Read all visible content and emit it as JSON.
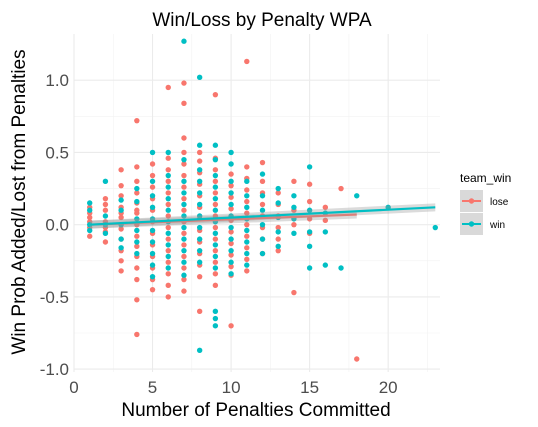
{
  "chart_data": {
    "type": "scatter",
    "title": "Win/Loss by Penalty WPA",
    "xlabel": "Number of Penalties Committed",
    "ylabel": "Win Prob Added/Lost from Penalties",
    "xlim": [
      0,
      23.3
    ],
    "ylim": [
      -1.02,
      1.32
    ],
    "x_ticks": [
      0,
      5,
      10,
      15,
      20
    ],
    "y_ticks": [
      -1.0,
      -0.5,
      0.0,
      0.5,
      1.0
    ],
    "x_tick_labels": [
      "0",
      "5",
      "10",
      "15",
      "20"
    ],
    "y_tick_labels": [
      "-1.0",
      "-0.5",
      "0.0",
      "0.5",
      "1.0"
    ],
    "grid": true,
    "legend": {
      "title": "team_win",
      "placement": "right",
      "entries": [
        "lose",
        "win"
      ]
    },
    "series": [
      {
        "name": "lose",
        "color": "#F8766D",
        "trend": {
          "x": [
            1,
            18
          ],
          "y": [
            0.0,
            0.07
          ]
        },
        "points": [
          [
            1,
            0.12
          ],
          [
            1,
            0.05
          ],
          [
            1,
            -0.02
          ],
          [
            1,
            -0.08
          ],
          [
            1,
            0.08
          ],
          [
            1,
            0.02
          ],
          [
            2,
            0.18
          ],
          [
            2,
            0.1
          ],
          [
            2,
            0.02
          ],
          [
            2,
            -0.05
          ],
          [
            2,
            -0.12
          ],
          [
            2,
            0.14
          ],
          [
            2,
            -0.02
          ],
          [
            3,
            0.38
          ],
          [
            3,
            0.27
          ],
          [
            3,
            0.2
          ],
          [
            3,
            0.12
          ],
          [
            3,
            0.05
          ],
          [
            3,
            -0.03
          ],
          [
            3,
            -0.1
          ],
          [
            3,
            -0.18
          ],
          [
            3,
            -0.25
          ],
          [
            3,
            -0.32
          ],
          [
            3,
            0.08
          ],
          [
            4,
            0.72
          ],
          [
            4,
            0.4
          ],
          [
            4,
            0.3
          ],
          [
            4,
            0.22
          ],
          [
            4,
            0.15
          ],
          [
            4,
            0.08
          ],
          [
            4,
            0.0
          ],
          [
            4,
            -0.08
          ],
          [
            4,
            -0.15
          ],
          [
            4,
            -0.22
          ],
          [
            4,
            -0.3
          ],
          [
            4,
            -0.38
          ],
          [
            4,
            -0.52
          ],
          [
            4,
            -0.76
          ],
          [
            4,
            0.1
          ],
          [
            5,
            0.42
          ],
          [
            5,
            0.34
          ],
          [
            5,
            0.26
          ],
          [
            5,
            0.18
          ],
          [
            5,
            0.1
          ],
          [
            5,
            0.02
          ],
          [
            5,
            -0.06
          ],
          [
            5,
            -0.14
          ],
          [
            5,
            -0.22
          ],
          [
            5,
            -0.3
          ],
          [
            5,
            -0.38
          ],
          [
            5,
            -0.45
          ],
          [
            6,
            0.95
          ],
          [
            6,
            0.46
          ],
          [
            6,
            0.38
          ],
          [
            6,
            0.3
          ],
          [
            6,
            0.22
          ],
          [
            6,
            0.14
          ],
          [
            6,
            0.06
          ],
          [
            6,
            -0.02
          ],
          [
            6,
            -0.1
          ],
          [
            6,
            -0.18
          ],
          [
            6,
            -0.26
          ],
          [
            6,
            -0.34
          ],
          [
            6,
            -0.42
          ],
          [
            6,
            -0.5
          ],
          [
            7,
            0.98
          ],
          [
            7,
            0.84
          ],
          [
            7,
            0.6
          ],
          [
            7,
            0.5
          ],
          [
            7,
            0.42
          ],
          [
            7,
            0.34
          ],
          [
            7,
            0.26
          ],
          [
            7,
            0.18
          ],
          [
            7,
            0.1
          ],
          [
            7,
            0.02
          ],
          [
            7,
            -0.06
          ],
          [
            7,
            -0.14
          ],
          [
            7,
            -0.22
          ],
          [
            7,
            -0.3
          ],
          [
            7,
            -0.38
          ],
          [
            7,
            -0.46
          ],
          [
            8,
            0.5
          ],
          [
            8,
            0.44
          ],
          [
            8,
            0.36
          ],
          [
            8,
            0.28
          ],
          [
            8,
            0.2
          ],
          [
            8,
            0.12
          ],
          [
            8,
            0.04
          ],
          [
            8,
            -0.04
          ],
          [
            8,
            -0.12
          ],
          [
            8,
            -0.2
          ],
          [
            8,
            -0.28
          ],
          [
            8,
            -0.36
          ],
          [
            8,
            -0.6
          ],
          [
            9,
            0.9
          ],
          [
            9,
            0.46
          ],
          [
            9,
            0.38
          ],
          [
            9,
            0.3
          ],
          [
            9,
            0.22
          ],
          [
            9,
            0.14
          ],
          [
            9,
            0.06
          ],
          [
            9,
            -0.02
          ],
          [
            9,
            -0.1
          ],
          [
            9,
            -0.18
          ],
          [
            9,
            -0.26
          ],
          [
            9,
            -0.34
          ],
          [
            9,
            -0.42
          ],
          [
            10,
            0.35
          ],
          [
            10,
            0.27
          ],
          [
            10,
            0.19
          ],
          [
            10,
            0.11
          ],
          [
            10,
            0.03
          ],
          [
            10,
            -0.05
          ],
          [
            10,
            -0.13
          ],
          [
            10,
            -0.21
          ],
          [
            10,
            -0.29
          ],
          [
            10,
            -0.35
          ],
          [
            10,
            -0.7
          ],
          [
            11,
            1.13
          ],
          [
            11,
            0.4
          ],
          [
            11,
            0.32
          ],
          [
            11,
            0.24
          ],
          [
            11,
            0.16
          ],
          [
            11,
            0.08
          ],
          [
            11,
            0.0
          ],
          [
            11,
            -0.08
          ],
          [
            11,
            -0.16
          ],
          [
            11,
            -0.24
          ],
          [
            11,
            -0.32
          ],
          [
            12,
            0.43
          ],
          [
            12,
            0.3
          ],
          [
            12,
            0.22
          ],
          [
            12,
            0.14
          ],
          [
            12,
            0.06
          ],
          [
            12,
            -0.02
          ],
          [
            12,
            -0.1
          ],
          [
            12,
            -0.2
          ],
          [
            13,
            0.22
          ],
          [
            13,
            0.14
          ],
          [
            13,
            0.06
          ],
          [
            13,
            -0.02
          ],
          [
            13,
            -0.1
          ],
          [
            13,
            -0.18
          ],
          [
            14,
            0.3
          ],
          [
            14,
            0.1
          ],
          [
            14,
            0.0
          ],
          [
            14,
            -0.47
          ],
          [
            15,
            0.28
          ],
          [
            15,
            0.16
          ],
          [
            15,
            0.04
          ],
          [
            15,
            -0.06
          ],
          [
            16,
            0.12
          ],
          [
            16,
            0.03
          ],
          [
            17,
            0.25
          ],
          [
            18,
            -0.93
          ]
        ]
      },
      {
        "name": "win",
        "color": "#00BFC4",
        "trend": {
          "x": [
            1,
            23
          ],
          "y": [
            0.0,
            0.12
          ]
        },
        "points": [
          [
            1,
            0.1
          ],
          [
            1,
            0.0
          ],
          [
            1,
            -0.04
          ],
          [
            1,
            0.15
          ],
          [
            2,
            0.3
          ],
          [
            2,
            0.06
          ],
          [
            2,
            -0.06
          ],
          [
            2,
            0.0
          ],
          [
            3,
            0.1
          ],
          [
            3,
            0.0
          ],
          [
            3,
            -0.1
          ],
          [
            3,
            0.17
          ],
          [
            3,
            -0.16
          ],
          [
            4,
            0.16
          ],
          [
            4,
            0.04
          ],
          [
            4,
            -0.04
          ],
          [
            4,
            -0.12
          ],
          [
            4,
            0.25
          ],
          [
            4,
            -0.2
          ],
          [
            5,
            0.5
          ],
          [
            5,
            0.3
          ],
          [
            5,
            0.2
          ],
          [
            5,
            0.12
          ],
          [
            5,
            0.04
          ],
          [
            5,
            -0.04
          ],
          [
            5,
            -0.12
          ],
          [
            5,
            -0.2
          ],
          [
            5,
            -0.28
          ],
          [
            5,
            -0.36
          ],
          [
            6,
            0.5
          ],
          [
            6,
            0.34
          ],
          [
            6,
            0.26
          ],
          [
            6,
            0.18
          ],
          [
            6,
            0.1
          ],
          [
            6,
            0.02
          ],
          [
            6,
            -0.06
          ],
          [
            6,
            -0.14
          ],
          [
            6,
            -0.22
          ],
          [
            6,
            -0.3
          ],
          [
            7,
            1.27
          ],
          [
            7,
            0.45
          ],
          [
            7,
            0.3
          ],
          [
            7,
            0.22
          ],
          [
            7,
            0.14
          ],
          [
            7,
            0.06
          ],
          [
            7,
            -0.02
          ],
          [
            7,
            -0.1
          ],
          [
            7,
            -0.18
          ],
          [
            7,
            -0.26
          ],
          [
            7,
            -0.35
          ],
          [
            8,
            1.02
          ],
          [
            8,
            0.55
          ],
          [
            8,
            0.38
          ],
          [
            8,
            0.3
          ],
          [
            8,
            0.22
          ],
          [
            8,
            0.14
          ],
          [
            8,
            0.06
          ],
          [
            8,
            -0.02
          ],
          [
            8,
            -0.1
          ],
          [
            8,
            -0.18
          ],
          [
            8,
            -0.26
          ],
          [
            8,
            -0.87
          ],
          [
            9,
            0.55
          ],
          [
            9,
            0.45
          ],
          [
            9,
            0.34
          ],
          [
            9,
            0.26
          ],
          [
            9,
            0.18
          ],
          [
            9,
            0.1
          ],
          [
            9,
            0.02
          ],
          [
            9,
            -0.06
          ],
          [
            9,
            -0.14
          ],
          [
            9,
            -0.22
          ],
          [
            9,
            -0.3
          ],
          [
            9,
            -0.6
          ],
          [
            9,
            -0.65
          ],
          [
            9,
            -0.7
          ],
          [
            10,
            0.5
          ],
          [
            10,
            0.42
          ],
          [
            10,
            0.3
          ],
          [
            10,
            0.22
          ],
          [
            10,
            0.14
          ],
          [
            10,
            0.06
          ],
          [
            10,
            -0.02
          ],
          [
            10,
            -0.1
          ],
          [
            10,
            -0.18
          ],
          [
            10,
            -0.26
          ],
          [
            10,
            -0.34
          ],
          [
            11,
            0.3
          ],
          [
            11,
            0.2
          ],
          [
            11,
            0.12
          ],
          [
            11,
            0.04
          ],
          [
            11,
            -0.04
          ],
          [
            11,
            -0.12
          ],
          [
            11,
            -0.2
          ],
          [
            11,
            -0.28
          ],
          [
            12,
            0.35
          ],
          [
            12,
            0.2
          ],
          [
            12,
            0.1
          ],
          [
            12,
            0.0
          ],
          [
            12,
            -0.1
          ],
          [
            12,
            -0.2
          ],
          [
            13,
            0.25
          ],
          [
            13,
            0.15
          ],
          [
            13,
            0.05
          ],
          [
            13,
            -0.05
          ],
          [
            13,
            -0.15
          ],
          [
            14,
            0.2
          ],
          [
            14,
            0.12
          ],
          [
            14,
            0.04
          ],
          [
            14,
            -0.06
          ],
          [
            15,
            0.4
          ],
          [
            15,
            0.1
          ],
          [
            15,
            -0.05
          ],
          [
            15,
            -0.15
          ],
          [
            15,
            -0.3
          ],
          [
            16,
            0.08
          ],
          [
            16,
            -0.05
          ],
          [
            16,
            -0.28
          ],
          [
            17,
            -0.3
          ],
          [
            18,
            0.2
          ],
          [
            20,
            0.12
          ],
          [
            23,
            -0.02
          ]
        ]
      }
    ]
  }
}
